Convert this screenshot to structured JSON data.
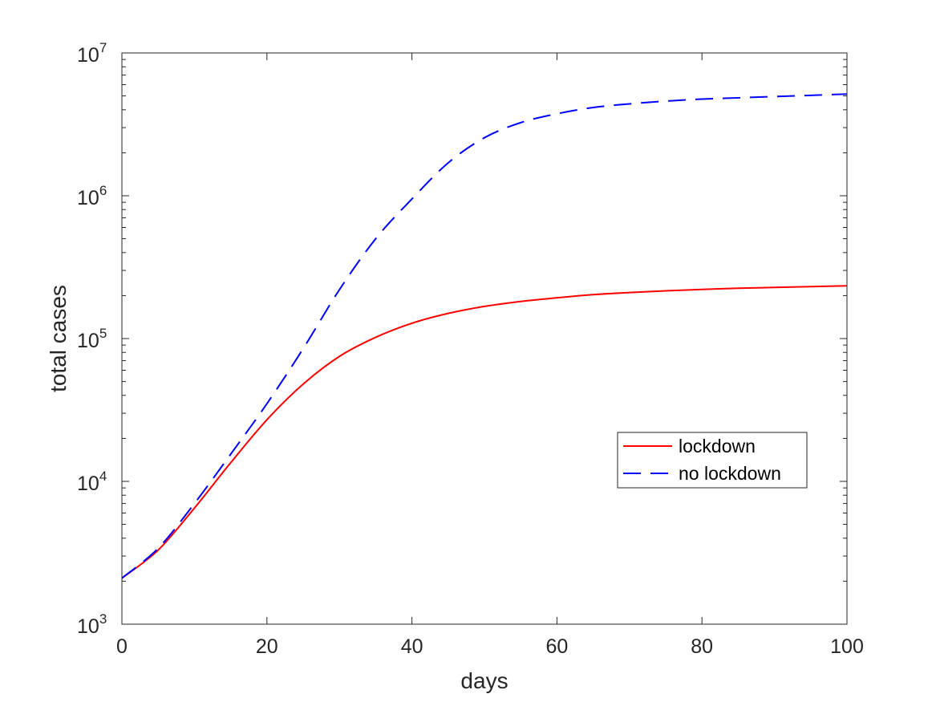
{
  "chart_data": {
    "type": "line",
    "title": "",
    "xlabel": "days",
    "ylabel": "total cases",
    "xlim": [
      0,
      100
    ],
    "ylim": [
      1000,
      10000000
    ],
    "yscale": "log",
    "grid": false,
    "legend_position": "center-right",
    "x_ticks": [
      0,
      20,
      40,
      60,
      80,
      100
    ],
    "x_tick_labels": [
      "0",
      "20",
      "40",
      "60",
      "80",
      "100"
    ],
    "y_ticks": [
      1000,
      10000,
      100000,
      1000000,
      10000000
    ],
    "y_tick_labels": [
      {
        "base": "10",
        "exp": "3"
      },
      {
        "base": "10",
        "exp": "4"
      },
      {
        "base": "10",
        "exp": "5"
      },
      {
        "base": "10",
        "exp": "6"
      },
      {
        "base": "10",
        "exp": "7"
      }
    ],
    "series": [
      {
        "name": "lockdown",
        "color": "#ff0000",
        "dash": "solid",
        "x": [
          0,
          5,
          10,
          15,
          20,
          25,
          30,
          35,
          40,
          45,
          50,
          55,
          60,
          65,
          70,
          75,
          80,
          85,
          90,
          95,
          100
        ],
        "y": [
          2100,
          3300,
          6500,
          13500,
          27000,
          48000,
          75000,
          102000,
          128000,
          150000,
          168000,
          182000,
          193000,
          203000,
          210000,
          216000,
          221000,
          225000,
          228000,
          231000,
          234000
        ]
      },
      {
        "name": "no lockdown",
        "color": "#0000ff",
        "dash": "dashed",
        "x": [
          0,
          5,
          10,
          15,
          20,
          25,
          30,
          35,
          40,
          45,
          50,
          55,
          60,
          65,
          70,
          75,
          80,
          85,
          90,
          95,
          100
        ],
        "y": [
          2100,
          3400,
          7000,
          15500,
          35000,
          85000,
          220000,
          500000,
          950000,
          1700000,
          2550000,
          3250000,
          3750000,
          4150000,
          4400000,
          4600000,
          4750000,
          4850000,
          4950000,
          5050000,
          5150000
        ]
      }
    ]
  }
}
